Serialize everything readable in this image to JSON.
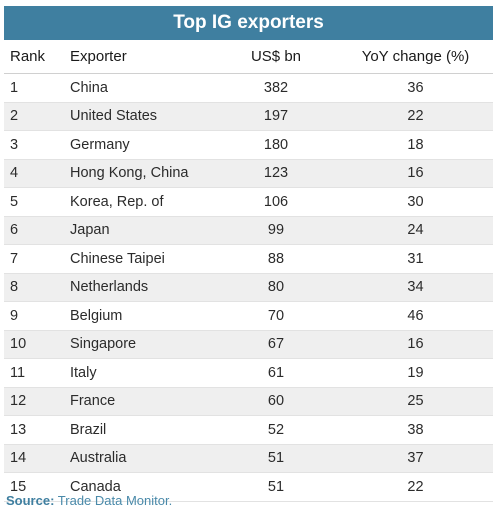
{
  "title": "Top IG exporters",
  "columns": {
    "rank": "Rank",
    "exporter": "Exporter",
    "usd": "US$ bn",
    "yoy": "YoY change (%)"
  },
  "rows": [
    {
      "rank": "1",
      "exporter": "China",
      "usd": "382",
      "yoy": "36"
    },
    {
      "rank": "2",
      "exporter": "United States",
      "usd": "197",
      "yoy": "22"
    },
    {
      "rank": "3",
      "exporter": "Germany",
      "usd": "180",
      "yoy": "18"
    },
    {
      "rank": "4",
      "exporter": "Hong Kong, China",
      "usd": "123",
      "yoy": "16"
    },
    {
      "rank": "5",
      "exporter": "Korea, Rep. of",
      "usd": "106",
      "yoy": "30"
    },
    {
      "rank": "6",
      "exporter": "Japan",
      "usd": "99",
      "yoy": "24"
    },
    {
      "rank": "7",
      "exporter": "Chinese Taipei",
      "usd": "88",
      "yoy": "31"
    },
    {
      "rank": "8",
      "exporter": "Netherlands",
      "usd": "80",
      "yoy": "34"
    },
    {
      "rank": "9",
      "exporter": "Belgium",
      "usd": "70",
      "yoy": "46"
    },
    {
      "rank": "10",
      "exporter": "Singapore",
      "usd": "67",
      "yoy": "16"
    },
    {
      "rank": "11",
      "exporter": "Italy",
      "usd": "61",
      "yoy": "19"
    },
    {
      "rank": "12",
      "exporter": "France",
      "usd": "60",
      "yoy": "25"
    },
    {
      "rank": "13",
      "exporter": "Brazil",
      "usd": "52",
      "yoy": "38"
    },
    {
      "rank": "14",
      "exporter": "Australia",
      "usd": "51",
      "yoy": "37"
    },
    {
      "rank": "15",
      "exporter": "Canada",
      "usd": "51",
      "yoy": "22"
    }
  ],
  "source": {
    "label": "Source:",
    "text": "Trade Data Monitor."
  },
  "colors": {
    "title_bg": "#3f7fa0",
    "stripe": "#efefef",
    "source_text": "#4a8aaa"
  }
}
